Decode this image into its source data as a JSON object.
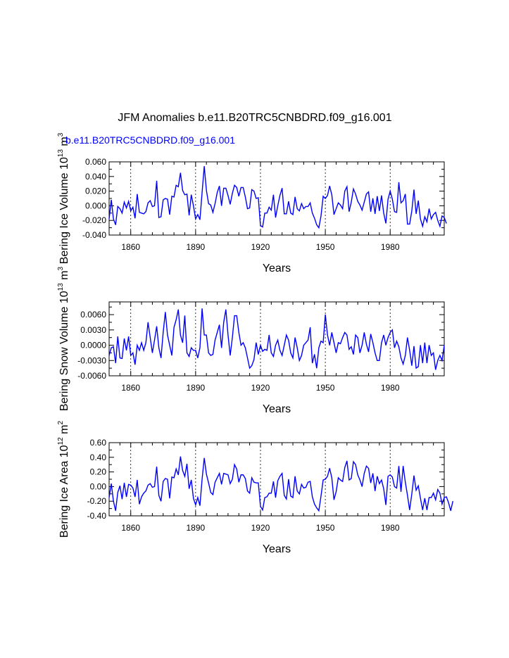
{
  "title": "JFM Anomalies b.e11.B20TRC5CNBDRD.f09_g16.001",
  "colors": {
    "series": "#0000ff",
    "subtitle": "#0000ff",
    "axes": "#000000",
    "refline": "#000000"
  },
  "chart_data": [
    {
      "type": "line",
      "subtitle": "b.e11.B20TRC5CNBDRD.f09_g16.001",
      "xlabel": "Years",
      "ylabel": "Bering Ice Volume 10",
      "ylabel_exp": "13",
      "ylabel_unit": " m",
      "ylabel_unit_exp": "3",
      "xlim": [
        1850,
        2005
      ],
      "ylim": [
        -0.04,
        0.06
      ],
      "yticks": [
        -0.04,
        -0.02,
        0.0,
        0.02,
        0.04,
        0.06
      ],
      "ytick_labels": [
        "-0.040",
        "-0.020",
        "0.000",
        "0.020",
        "0.040",
        "0.060"
      ],
      "xticks": [
        1860,
        1890,
        1920,
        1950,
        1980
      ],
      "xtick_labels": [
        "1860",
        "1890",
        "1920",
        "1950",
        "1980"
      ],
      "reference_lines_x": [
        1860,
        1890,
        1920,
        1950,
        1980
      ],
      "series": [
        {
          "name": "Bering Ice Volume",
          "x_start": 1850,
          "values": [
            -0.018,
            0.008,
            -0.018,
            -0.026,
            -0.001,
            -0.004,
            -0.01,
            0.005,
            -0.003,
            0.006,
            -0.007,
            -0.002,
            -0.017,
            0.016,
            -0.009,
            -0.01,
            -0.011,
            -0.008,
            0.004,
            0.007,
            -0.001,
            0.0,
            0.034,
            -0.016,
            -0.015,
            0.008,
            0.01,
            0.009,
            -0.012,
            0.013,
            0.012,
            0.028,
            0.026,
            0.045,
            0.021,
            0.015,
            0.016,
            -0.013,
            0.015,
            0.0,
            -0.018,
            -0.012,
            -0.019,
            0.018,
            0.054,
            0.021,
            0.003,
            0.001,
            -0.009,
            0.003,
            0.018,
            0.027,
            0.0,
            0.024,
            0.024,
            0.014,
            0.002,
            0.017,
            0.028,
            0.025,
            0.013,
            0.025,
            0.025,
            0.012,
            -0.004,
            -0.003,
            0.022,
            0.02,
            0.01,
            0.011,
            -0.027,
            -0.029,
            -0.01,
            -0.01,
            -0.002,
            -0.006,
            0.015,
            -0.016,
            0.0,
            0.014,
            0.024,
            -0.011,
            -0.011,
            0.006,
            -0.01,
            -0.012,
            0.012,
            -0.004,
            -0.007,
            0.003,
            -0.004,
            -0.001,
            -0.001,
            0.004,
            -0.01,
            -0.017,
            -0.026,
            -0.03,
            -0.014,
            0.013,
            0.01,
            0.014,
            0.027,
            0.015,
            -0.012,
            -0.004,
            0.004,
            0.001,
            -0.004,
            0.02,
            0.026,
            -0.008,
            0.005,
            0.023,
            0.016,
            0.006,
            0.001,
            -0.006,
            0.005,
            0.016,
            0.019,
            -0.008,
            0.01,
            -0.011,
            0.013,
            -0.007,
            0.014,
            -0.01,
            -0.024,
            0.009,
            0.02,
            0.009,
            -0.008,
            -0.009,
            0.032,
            0.004,
            0.007,
            0.016,
            -0.025,
            -0.025,
            -0.007,
            0.022,
            -0.011,
            0.007,
            -0.018,
            -0.028,
            -0.015,
            -0.022,
            -0.004,
            -0.018,
            -0.012,
            -0.009,
            -0.02,
            -0.028,
            -0.014,
            -0.016,
            -0.024
          ]
        }
      ]
    },
    {
      "type": "line",
      "subtitle": "",
      "xlabel": "Years",
      "ylabel": "Bering Snow Volume 10",
      "ylabel_exp": "13",
      "ylabel_unit": " m",
      "ylabel_unit_exp": "3",
      "xlim": [
        1850,
        2005
      ],
      "ylim": [
        -0.006,
        0.0085
      ],
      "yticks": [
        -0.006,
        -0.003,
        0.0,
        0.003,
        0.006
      ],
      "ytick_labels": [
        "-0.0060",
        "-0.0030",
        "0.0000",
        "0.0030",
        "0.0060"
      ],
      "xticks": [
        1860,
        1890,
        1920,
        1950,
        1980
      ],
      "xtick_labels": [
        "1860",
        "1890",
        "1920",
        "1950",
        "1980"
      ],
      "reference_lines_x": [
        1860,
        1890,
        1920,
        1950,
        1980
      ],
      "series": [
        {
          "name": "Bering Snow Volume",
          "x_start": 1850,
          "values": [
            -0.002,
            -0.0005,
            -0.0003,
            -0.0035,
            0.0017,
            -0.0025,
            -0.0026,
            0.0013,
            -0.001,
            0.0017,
            -0.002,
            -0.0015,
            -0.0038,
            0.0,
            -0.001,
            0.0005,
            -0.001,
            0.0005,
            0.0045,
            0.0015,
            -0.0015,
            0.001,
            0.0037,
            -0.0005,
            -0.0025,
            0.0025,
            0.0065,
            0.002,
            0.0,
            -0.002,
            0.0035,
            0.005,
            0.007,
            0.002,
            0.0005,
            0.0058,
            -0.0015,
            -0.0022,
            -0.0005,
            -0.001,
            -0.001,
            -0.0025,
            -0.0005,
            0.0072,
            0.002,
            0.002,
            -0.0015,
            -0.002,
            -0.0018,
            0.001,
            0.0025,
            0.004,
            -0.0005,
            0.0045,
            0.007,
            0.002,
            -0.002,
            0.0015,
            0.0058,
            0.0058,
            0.0025,
            0.0,
            0.0005,
            -0.0005,
            -0.0025,
            -0.0045,
            -0.004,
            -0.0028,
            0.0005,
            -0.0018,
            0.0,
            -0.0012,
            -0.0008,
            -0.001,
            0.002,
            -0.0015,
            -0.0022,
            0.0,
            0.001,
            -0.001,
            -0.002,
            0.0,
            0.002,
            0.001,
            -0.0015,
            -0.0025,
            0.0015,
            -0.0005,
            -0.003,
            -0.002,
            0.0,
            0.0005,
            0.001,
            0.0035,
            -0.0035,
            -0.0018,
            -0.0045,
            -0.0005,
            0.0008,
            0.0005,
            0.006,
            0.002,
            0.0,
            0.0025,
            0.0005,
            -0.0015,
            0.0005,
            0.0003,
            0.0015,
            0.0025,
            0.002,
            -0.0008,
            -0.0003,
            -0.0018,
            0.002,
            0.0015,
            -0.0015,
            0.0,
            0.0025,
            0.0002,
            -0.0013,
            0.0022,
            0.0005,
            -0.0015,
            -0.003,
            -0.003,
            0.0005,
            0.002,
            0.0,
            0.0015,
            0.0025,
            0.003,
            -0.0005,
            0.0008,
            -0.0003,
            -0.0025,
            -0.0037,
            -0.002,
            0.0015,
            -0.001,
            -0.004,
            -0.0002,
            -0.0045,
            -0.0042,
            0.0,
            -0.0035,
            0.0005,
            -0.0035,
            0.0,
            -0.002,
            -0.0015,
            -0.0048,
            -0.003,
            -0.002,
            -0.003,
            0.0
          ]
        }
      ]
    },
    {
      "type": "line",
      "subtitle": "",
      "xlabel": "Years",
      "ylabel": "Bering Ice Area 10",
      "ylabel_exp": "12",
      "ylabel_unit": " m",
      "ylabel_unit_exp": "2",
      "xlim": [
        1850,
        2005
      ],
      "ylim": [
        -0.4,
        0.6
      ],
      "yticks": [
        -0.4,
        -0.2,
        0.0,
        0.2,
        0.4,
        0.6
      ],
      "ytick_labels": [
        "-0.40",
        "-0.20",
        "0.00",
        "0.20",
        "0.40",
        "0.60"
      ],
      "xticks": [
        1860,
        1890,
        1920,
        1950,
        1980
      ],
      "xtick_labels": [
        "1860",
        "1890",
        "1920",
        "1950",
        "1980"
      ],
      "reference_lines_x": [
        1860,
        1890,
        1920,
        1950,
        1980
      ],
      "series": [
        {
          "name": "Bering Ice Area",
          "x_start": 1850,
          "values": [
            -0.15,
            0.04,
            -0.2,
            -0.33,
            -0.08,
            0.01,
            -0.17,
            0.05,
            -0.14,
            0.03,
            0.02,
            -0.02,
            -0.14,
            0.09,
            -0.24,
            -0.14,
            -0.09,
            -0.06,
            0.02,
            0.04,
            -0.01,
            0.0,
            0.27,
            -0.12,
            -0.2,
            0.07,
            0.11,
            0.1,
            -0.16,
            0.13,
            0.12,
            0.24,
            0.16,
            0.41,
            0.22,
            0.14,
            0.31,
            -0.03,
            0.09,
            -0.16,
            -0.25,
            -0.15,
            -0.26,
            0.1,
            0.39,
            0.17,
            0.05,
            -0.08,
            -0.11,
            0.06,
            0.12,
            0.18,
            0.03,
            0.18,
            0.17,
            0.16,
            0.04,
            0.1,
            0.3,
            0.24,
            0.06,
            0.16,
            0.16,
            0.11,
            -0.06,
            -0.09,
            0.12,
            0.06,
            0.05,
            0.05,
            -0.27,
            -0.32,
            -0.15,
            -0.14,
            -0.09,
            -0.09,
            0.07,
            -0.15,
            0.08,
            0.14,
            0.18,
            -0.12,
            -0.17,
            0.1,
            -0.13,
            -0.15,
            0.14,
            -0.06,
            -0.1,
            0.03,
            -0.02,
            -0.01,
            0.06,
            0.07,
            -0.14,
            -0.24,
            -0.29,
            -0.33,
            -0.13,
            0.09,
            0.1,
            0.14,
            0.25,
            0.12,
            -0.18,
            -0.07,
            0.12,
            0.09,
            0.07,
            0.26,
            0.35,
            0.09,
            0.11,
            0.34,
            0.3,
            0.16,
            0.09,
            0.0,
            0.18,
            0.28,
            0.25,
            0.05,
            0.18,
            -0.06,
            0.14,
            0.04,
            0.09,
            -0.03,
            -0.25,
            0.14,
            0.16,
            0.13,
            0.0,
            -0.02,
            0.28,
            -0.07,
            0.28,
            0.06,
            -0.12,
            -0.32,
            -0.1,
            0.15,
            -0.05,
            0.01,
            -0.16,
            -0.32,
            -0.16,
            -0.32,
            -0.15,
            -0.15,
            -0.09,
            -0.18,
            -0.04,
            -0.09,
            -0.24,
            -0.15,
            -0.14,
            -0.22,
            -0.33,
            -0.2
          ]
        }
      ]
    }
  ]
}
